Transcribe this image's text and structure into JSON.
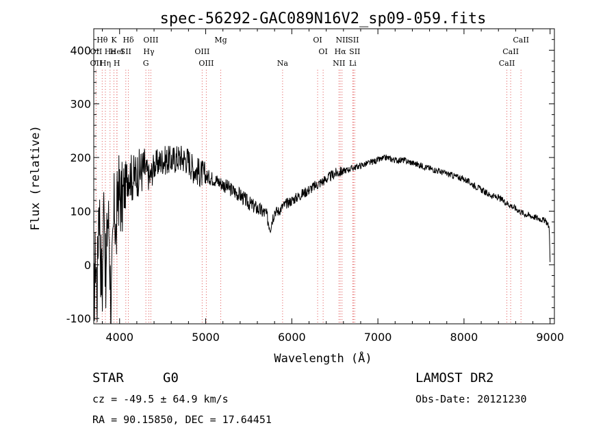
{
  "chart_data": {
    "type": "line",
    "title": "spec-56292-GAC089N16V2_sp09-059.fits",
    "xlabel": "Wavelength (Å)",
    "ylabel": "Flux (relative)",
    "xlim": [
      3700,
      9050
    ],
    "ylim": [
      -110,
      440
    ],
    "xticks": [
      4000,
      5000,
      6000,
      7000,
      8000,
      9000
    ],
    "yticks": [
      -100,
      0,
      100,
      200,
      300,
      400
    ],
    "series": [
      {
        "name": "flux",
        "x": [
          3700,
          3720,
          3740,
          3760,
          3780,
          3800,
          3820,
          3840,
          3860,
          3880,
          3900,
          3920,
          3940,
          3960,
          3980,
          4000,
          4030,
          4060,
          4100,
          4150,
          4200,
          4250,
          4300,
          4350,
          4400,
          4450,
          4500,
          4600,
          4700,
          4800,
          4850,
          4900,
          4950,
          5000,
          5100,
          5200,
          5300,
          5400,
          5500,
          5600,
          5650,
          5700,
          5730,
          5750,
          5780,
          5800,
          5850,
          5900,
          5950,
          6000,
          6100,
          6200,
          6300,
          6400,
          6500,
          6600,
          6700,
          6800,
          6900,
          7000,
          7100,
          7200,
          7300,
          7400,
          7500,
          7600,
          7700,
          7800,
          7900,
          8000,
          8100,
          8200,
          8300,
          8400,
          8450,
          8500,
          8550,
          8600,
          8650,
          8700,
          8800,
          8900,
          8960,
          8990,
          9000
        ],
        "y": [
          -80,
          20,
          -50,
          140,
          10,
          -40,
          160,
          -60,
          100,
          60,
          -90,
          20,
          120,
          40,
          150,
          130,
          120,
          140,
          175,
          160,
          170,
          175,
          180,
          160,
          185,
          190,
          195,
          195,
          200,
          195,
          180,
          175,
          170,
          165,
          160,
          150,
          140,
          130,
          115,
          105,
          100,
          95,
          80,
          70,
          90,
          100,
          100,
          110,
          115,
          120,
          130,
          140,
          150,
          160,
          170,
          175,
          180,
          185,
          190,
          195,
          200,
          195,
          195,
          190,
          185,
          180,
          175,
          170,
          165,
          160,
          150,
          140,
          130,
          125,
          120,
          115,
          110,
          105,
          100,
          95,
          90,
          85,
          80,
          70,
          5
        ]
      }
    ],
    "line_markers": [
      {
        "label": "Hθ",
        "wl": 3798,
        "row": 0,
        "color": "#e05050"
      },
      {
        "label": "K",
        "wl": 3934,
        "row": 0,
        "color": "#e05050"
      },
      {
        "label": "Hδ",
        "wl": 4102,
        "row": 0,
        "color": "#e05050"
      },
      {
        "label": "OIII",
        "wl": 4363,
        "row": 0,
        "color": "#e05050"
      },
      {
        "label": "Mg",
        "wl": 5175,
        "row": 0,
        "color": "#e05050"
      },
      {
        "label": "OI",
        "wl": 6300,
        "row": 0,
        "color": "#e05050"
      },
      {
        "label": "NII",
        "wl": 6583,
        "row": 0,
        "color": "#e05050"
      },
      {
        "label": "SII",
        "wl": 6716,
        "row": 0,
        "color": "#e05050"
      },
      {
        "label": "CaII",
        "wl": 8662,
        "row": 0,
        "color": "#e05050"
      },
      {
        "label": "OII",
        "wl": 3727,
        "row": 1,
        "color": "#e05050"
      },
      {
        "label": "He",
        "wl": 3889,
        "row": 1,
        "color": "#e05050"
      },
      {
        "label": "HeI",
        "wl": 3970,
        "row": 1,
        "color": "#e05050"
      },
      {
        "label": "SII",
        "wl": 4072,
        "row": 1,
        "color": "#e05050"
      },
      {
        "label": "Hγ",
        "wl": 4340,
        "row": 1,
        "color": "#e05050"
      },
      {
        "label": "OIII",
        "wl": 4959,
        "row": 1,
        "color": "#e05050"
      },
      {
        "label": "OI",
        "wl": 6364,
        "row": 1,
        "color": "#e05050"
      },
      {
        "label": "Hα",
        "wl": 6563,
        "row": 1,
        "color": "#e05050"
      },
      {
        "label": "SII",
        "wl": 6731,
        "row": 1,
        "color": "#e05050"
      },
      {
        "label": "CaII",
        "wl": 8542,
        "row": 1,
        "color": "#e05050"
      },
      {
        "label": "OII",
        "wl": 3727,
        "row": 2,
        "color": "#e05050"
      },
      {
        "label": "Hη",
        "wl": 3835,
        "row": 2,
        "color": "#e05050"
      },
      {
        "label": "H",
        "wl": 3968,
        "row": 2,
        "color": "#e05050"
      },
      {
        "label": "G",
        "wl": 4305,
        "row": 2,
        "color": "#e05050"
      },
      {
        "label": "OIII",
        "wl": 5007,
        "row": 2,
        "color": "#e05050"
      },
      {
        "label": "Na",
        "wl": 5893,
        "row": 2,
        "color": "#e05050"
      },
      {
        "label": "NII",
        "wl": 6548,
        "row": 2,
        "color": "#e05050"
      },
      {
        "label": "Li",
        "wl": 6708,
        "row": 2,
        "color": "#e05050"
      },
      {
        "label": "CaII",
        "wl": 8498,
        "row": 2,
        "color": "#e05050"
      }
    ]
  },
  "info": {
    "class": "STAR",
    "subclass": "G0",
    "survey": "LAMOST DR2",
    "cz": "cz = -49.5 ± 64.9 km/s",
    "obs_date": "Obs-Date: 20121230",
    "coords": "RA =  90.15850, DEC =  17.64451"
  },
  "colors": {
    "marker": "#e05050",
    "axis": "#000000",
    "line": "#000000"
  }
}
